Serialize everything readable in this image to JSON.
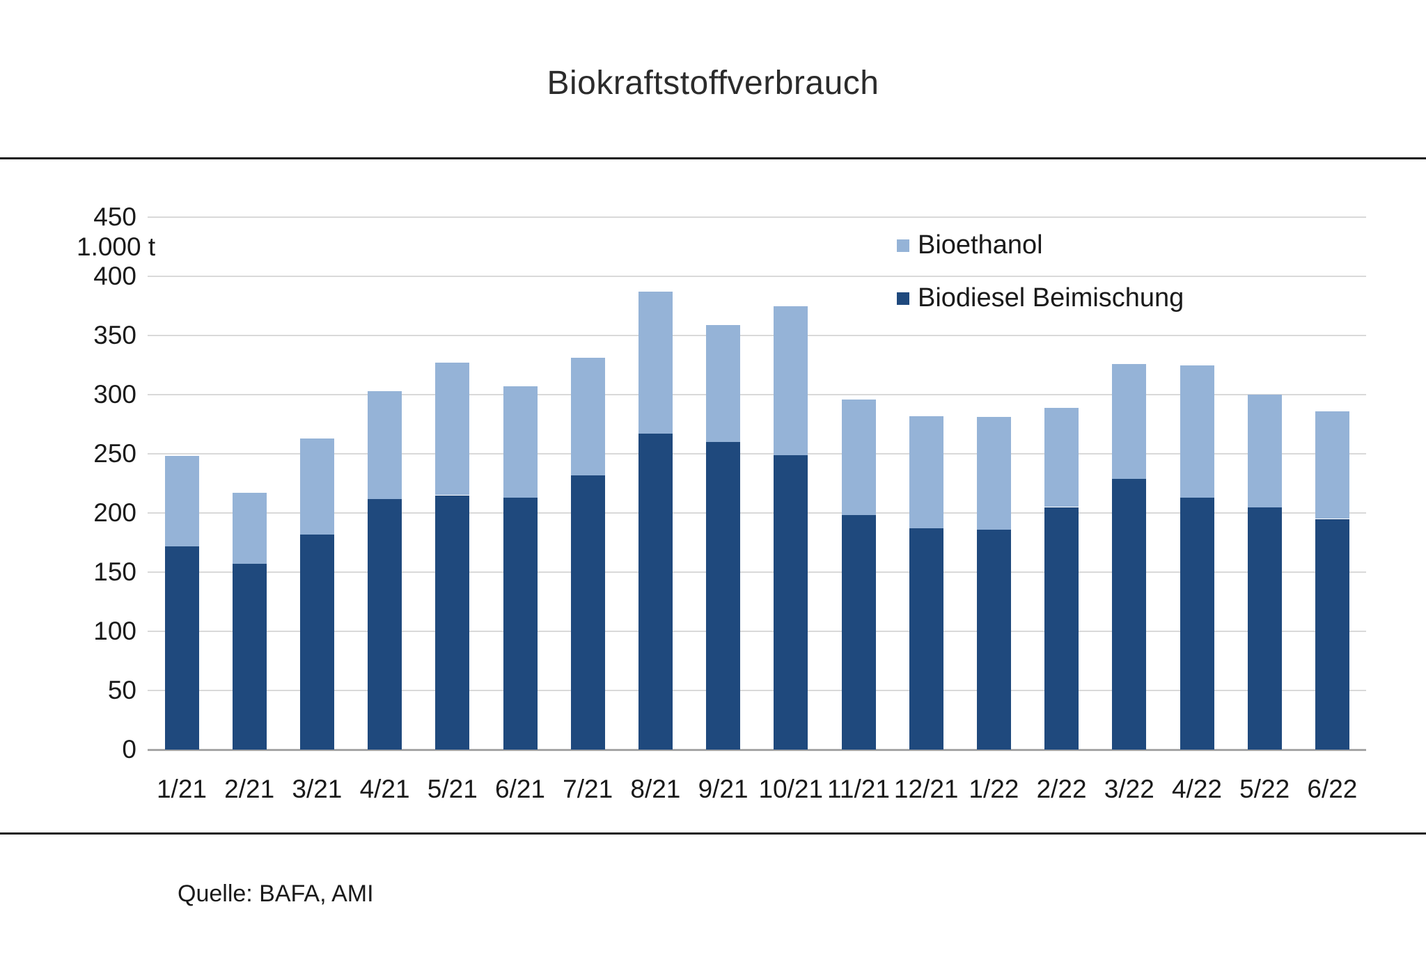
{
  "title": "Biokraftstoffverbrauch",
  "source_note": "Quelle: BAFA, AMI",
  "y_axis_unit_label": "1.000 t",
  "legend": [
    {
      "label": "Bioethanol",
      "color": "#95B3D7"
    },
    {
      "label": "Biodiesel Beimischung",
      "color": "#1F497D"
    }
  ],
  "colors": {
    "bioethanol": "#95B3D7",
    "biodiesel": "#1F497D",
    "gridline": "#d9d9d9",
    "axis_line": "#a6a6a6"
  },
  "chart_data": {
    "type": "bar",
    "stacked": true,
    "title": "Biokraftstoffverbrauch",
    "ylabel": "1.000 t",
    "ylim": [
      0,
      450
    ],
    "ytick_step": 50,
    "grid": true,
    "legend_position": "top-right",
    "categories": [
      "1/21",
      "2/21",
      "3/21",
      "4/21",
      "5/21",
      "6/21",
      "7/21",
      "8/21",
      "9/21",
      "10/21",
      "11/21",
      "12/21",
      "1/22",
      "2/22",
      "3/22",
      "4/22",
      "5/22",
      "6/22"
    ],
    "series": [
      {
        "name": "Biodiesel Beimischung",
        "color": "#1F497D",
        "values": [
          172,
          157,
          182,
          212,
          215,
          213,
          232,
          267,
          260,
          249,
          198,
          187,
          186,
          205,
          229,
          213,
          205,
          195
        ]
      },
      {
        "name": "Bioethanol",
        "color": "#95B3D7",
        "values": [
          76,
          60,
          81,
          91,
          112,
          94,
          99,
          120,
          99,
          126,
          98,
          95,
          95,
          84,
          97,
          112,
          95,
          91
        ]
      }
    ],
    "totals": [
      248,
      217,
      263,
      303,
      327,
      307,
      331,
      387,
      359,
      375,
      296,
      282,
      281,
      289,
      326,
      325,
      300,
      286
    ]
  }
}
